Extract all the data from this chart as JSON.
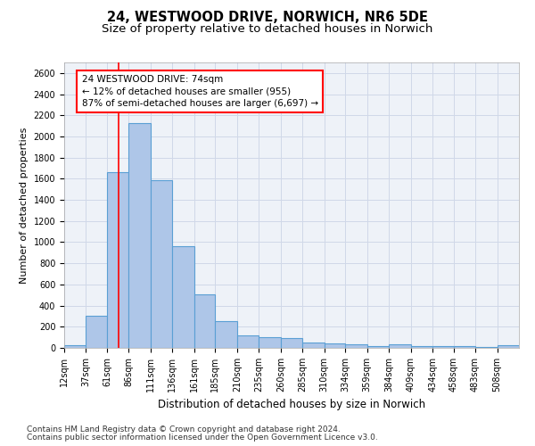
{
  "title1": "24, WESTWOOD DRIVE, NORWICH, NR6 5DE",
  "title2": "Size of property relative to detached houses in Norwich",
  "xlabel": "Distribution of detached houses by size in Norwich",
  "ylabel": "Number of detached properties",
  "bin_labels": [
    "12sqm",
    "37sqm",
    "61sqm",
    "86sqm",
    "111sqm",
    "136sqm",
    "161sqm",
    "185sqm",
    "210sqm",
    "235sqm",
    "260sqm",
    "285sqm",
    "310sqm",
    "334sqm",
    "359sqm",
    "384sqm",
    "409sqm",
    "434sqm",
    "458sqm",
    "483sqm",
    "508sqm"
  ],
  "bin_edges": [
    12,
    37,
    61,
    86,
    111,
    136,
    161,
    185,
    210,
    235,
    260,
    285,
    310,
    334,
    359,
    384,
    409,
    434,
    458,
    483,
    508,
    533
  ],
  "values": [
    25,
    300,
    1660,
    2130,
    1590,
    960,
    505,
    250,
    120,
    100,
    95,
    50,
    45,
    35,
    20,
    30,
    20,
    20,
    15,
    5,
    25
  ],
  "bar_color": "#aec6e8",
  "bar_edgecolor": "#5a9fd4",
  "bar_linewidth": 0.8,
  "grid_color": "#d0d8e8",
  "bg_color": "#eef2f8",
  "red_line_x": 74,
  "annotation_line1": "24 WESTWOOD DRIVE: 74sqm",
  "annotation_line2": "← 12% of detached houses are smaller (955)",
  "annotation_line3": "87% of semi-detached houses are larger (6,697) →",
  "annotation_box_color": "white",
  "annotation_box_edgecolor": "red",
  "ylim": [
    0,
    2700
  ],
  "yticks": [
    0,
    200,
    400,
    600,
    800,
    1000,
    1200,
    1400,
    1600,
    1800,
    2000,
    2200,
    2400,
    2600
  ],
  "footer1": "Contains HM Land Registry data © Crown copyright and database right 2024.",
  "footer2": "Contains public sector information licensed under the Open Government Licence v3.0.",
  "title1_fontsize": 10.5,
  "title2_fontsize": 9.5,
  "xlabel_fontsize": 8.5,
  "ylabel_fontsize": 8,
  "tick_fontsize": 7,
  "annotation_fontsize": 7.5,
  "footer_fontsize": 6.5
}
